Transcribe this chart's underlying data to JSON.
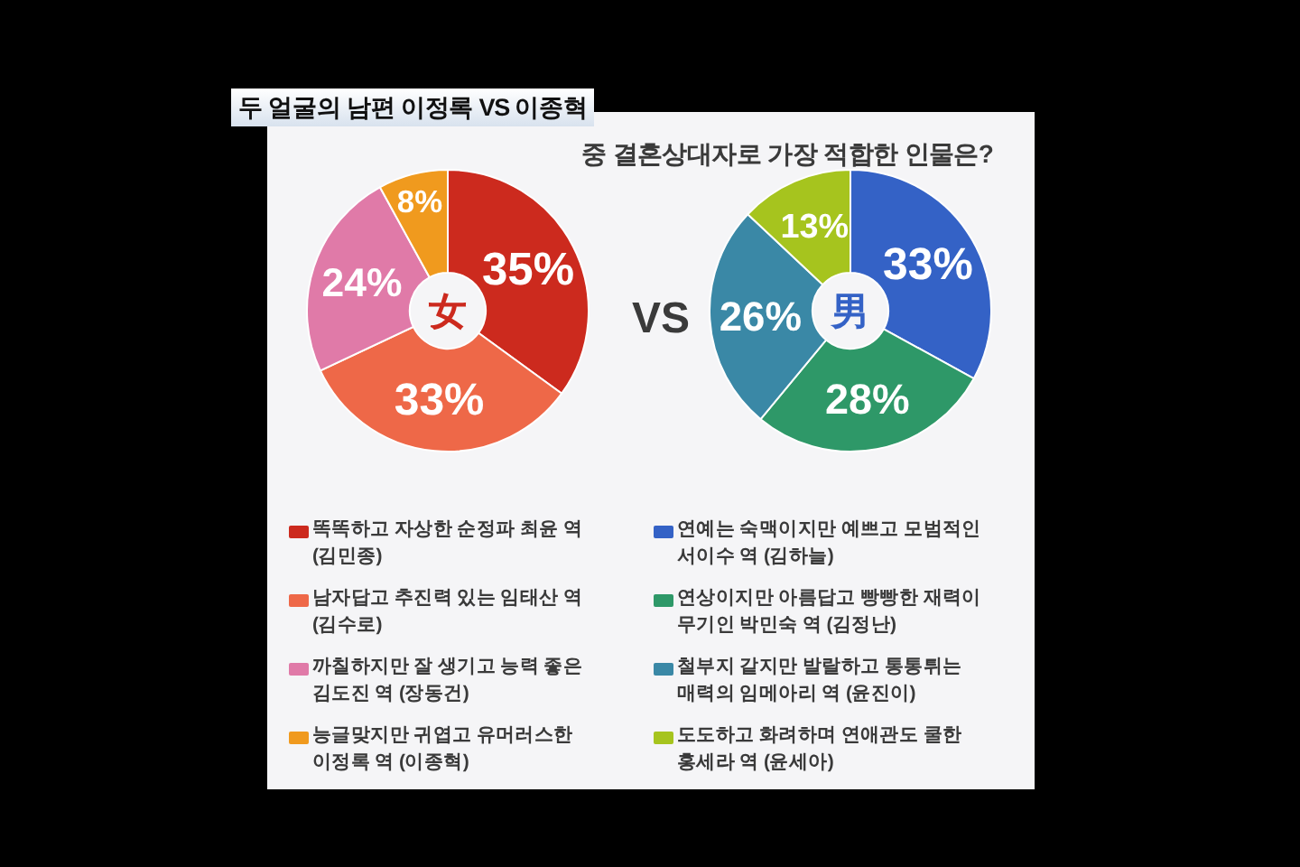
{
  "chart_data": [
    {
      "type": "other",
      "title": "중 결혼상대자로 가장 적합한 인물은?",
      "annotations": [
        "두 얼굴의 남편 이정록 VS 이종혁",
        "VS"
      ]
    },
    {
      "type": "donut",
      "categories": [
        "똑똑하고 자상한 순정파 최윤 역 (김민종)",
        "남자답고 추진력 있는 임태산 역 (김수로)",
        "까칠하지만 잘 생기고 능력 좋은 김도진 역 (장동건)",
        "능글맞지만 귀엽고 유머러스한 이정록 역 (이종혁)"
      ],
      "values": [
        35,
        33,
        24,
        8
      ],
      "colors": [
        "#cc2a1e",
        "#ee6848",
        "#e07aa8",
        "#f09a1e"
      ],
      "value_labels": [
        "35%",
        "33%",
        "24%",
        "8%"
      ],
      "annotations": [
        "女"
      ],
      "legend": "bottom"
    },
    {
      "type": "donut",
      "categories": [
        "연예는 숙맥이지만 예쁘고 모범적인 서이수 역 (김하늘)",
        "연상이지만 아름답고 빵빵한 재력이 무기인 박민숙 역 (김정난)",
        "철부지 같지만 발랄하고 통통튀는 매력의 임메아리 역 (윤진이)",
        "도도하고 화려하며 연애관도 쿨한 홍세라 역 (윤세아)"
      ],
      "values": [
        33,
        28,
        26,
        13
      ],
      "colors": [
        "#3462c6",
        "#2e9868",
        "#3a88a6",
        "#a6c41e"
      ],
      "value_labels": [
        "33%",
        "28%",
        "26%",
        "13%"
      ],
      "annotations": [
        "男"
      ],
      "legend": "bottom"
    }
  ]
}
